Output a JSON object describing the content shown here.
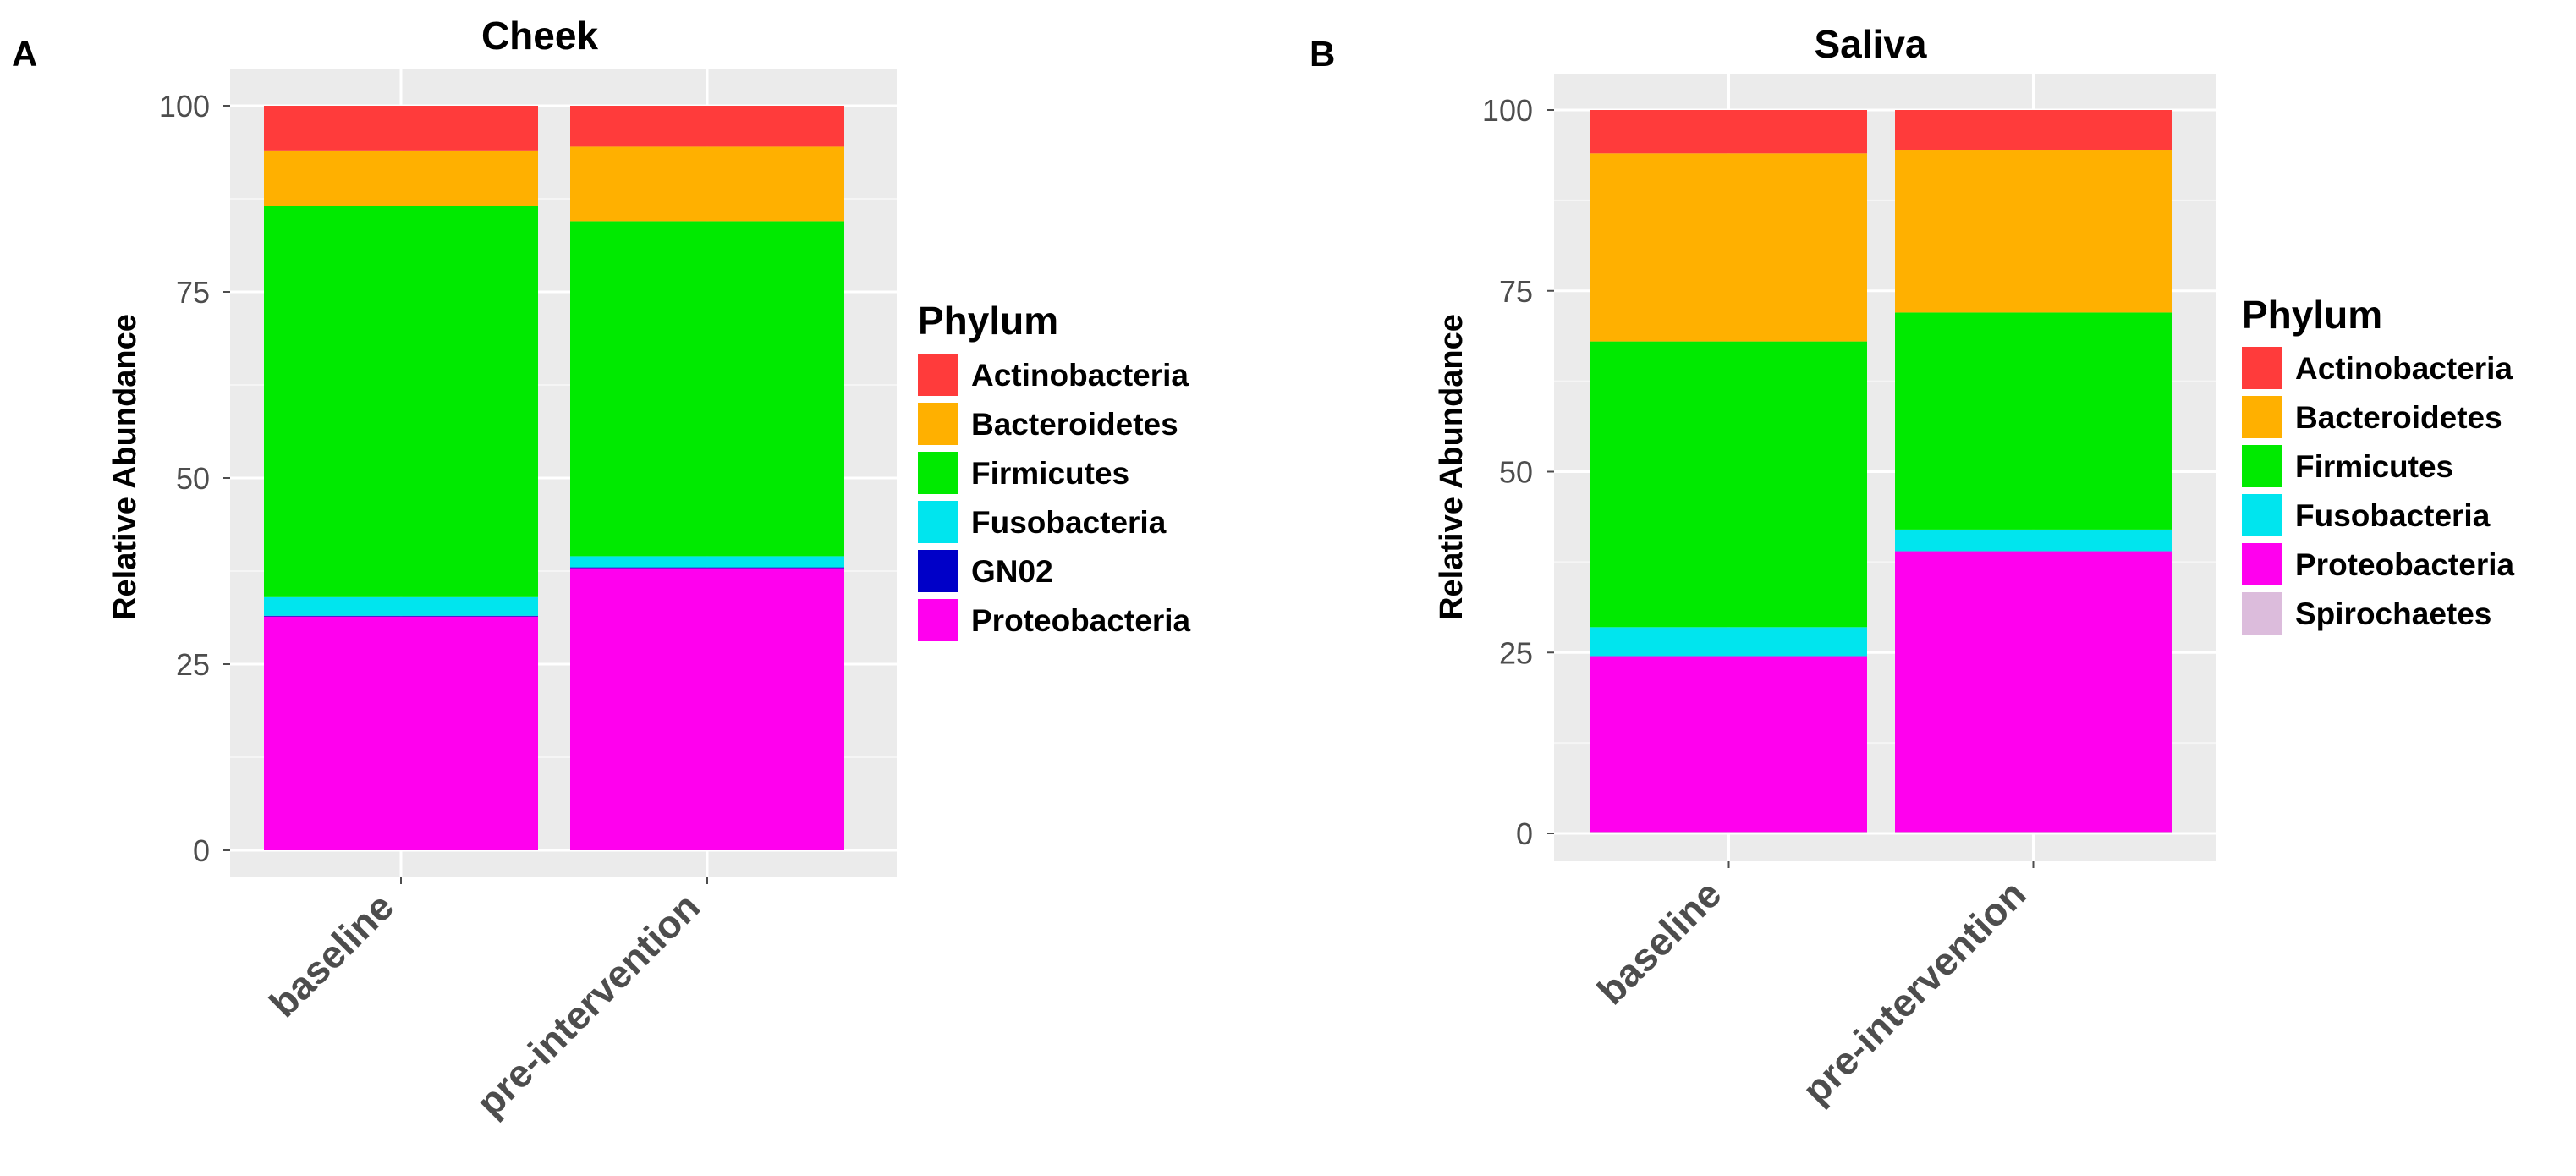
{
  "chart_data": [
    {
      "panel": "A",
      "type": "bar",
      "stacked": true,
      "title": "Cheek",
      "xlabel": "",
      "ylabel": "Relative Abundance",
      "ylim": [
        0,
        100
      ],
      "yticks": [
        0,
        25,
        50,
        75,
        100
      ],
      "categories": [
        "baseline",
        "pre-intervention"
      ],
      "legend_title": "Phylum",
      "legend_position": "right",
      "series": [
        {
          "name": "Actinobacteria",
          "color": "#ff3b3b",
          "values": [
            6,
            5.5
          ]
        },
        {
          "name": "Bacteroidetes",
          "color": "#ffb000",
          "values": [
            7.5,
            10
          ]
        },
        {
          "name": "Firmicutes",
          "color": "#00ea00",
          "values": [
            52.5,
            45
          ]
        },
        {
          "name": "Fusobacteria",
          "color": "#00e5ee",
          "values": [
            2.5,
            1.5
          ]
        },
        {
          "name": "GN02",
          "color": "#0000c8",
          "values": [
            0.1,
            0.1
          ]
        },
        {
          "name": "Proteobacteria",
          "color": "#ff00ee",
          "values": [
            31.4,
            37.9
          ]
        }
      ]
    },
    {
      "panel": "B",
      "type": "bar",
      "stacked": true,
      "title": "Saliva",
      "xlabel": "",
      "ylabel": "Relative Abundance",
      "ylim": [
        0,
        100
      ],
      "yticks": [
        0,
        25,
        50,
        75,
        100
      ],
      "categories": [
        "baseline",
        "pre-intervention"
      ],
      "legend_title": "Phylum",
      "legend_position": "right",
      "series": [
        {
          "name": "Actinobacteria",
          "color": "#ff3b3b",
          "values": [
            6,
            5.5
          ]
        },
        {
          "name": "Bacteroidetes",
          "color": "#ffb000",
          "values": [
            26,
            22.5
          ]
        },
        {
          "name": "Firmicutes",
          "color": "#00ea00",
          "values": [
            39.5,
            30
          ]
        },
        {
          "name": "Fusobacteria",
          "color": "#00e5ee",
          "values": [
            4,
            3
          ]
        },
        {
          "name": "Proteobacteria",
          "color": "#ff00ee",
          "values": [
            24.3,
            38.8
          ]
        },
        {
          "name": "Spirochaetes",
          "color": "#dcbcdc",
          "values": [
            0.2,
            0.2
          ]
        }
      ]
    }
  ]
}
